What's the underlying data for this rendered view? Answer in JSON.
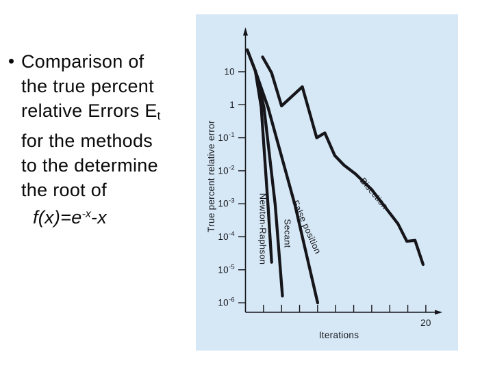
{
  "slide": {
    "bullet": {
      "lines": [
        "Comparison of",
        "the true percent",
        "relative Errors E",
        "for the methods",
        "to the determine",
        "the root of"
      ],
      "subscript": "t",
      "formula": {
        "prefix": "f(x)=e",
        "sup": "-x",
        "suffix": "-x"
      }
    }
  },
  "chart_data": {
    "type": "line",
    "title": "",
    "xlabel": "Iterations",
    "ylabel": "True percent relative error",
    "grid": false,
    "legend_position": "labels-on-curves",
    "x_axis": {
      "min": 0,
      "max": 22,
      "ticks": [
        2,
        4,
        6,
        8,
        10,
        12,
        14,
        16,
        18,
        20
      ],
      "labeled_tick": 20,
      "labeled_tick_text": "20"
    },
    "y_axis": {
      "scale": "log",
      "min": 1e-06,
      "max": 100,
      "tick_exponents": [
        1,
        0,
        -1,
        -2,
        -3,
        -4,
        -5,
        -6
      ],
      "tick_labels": [
        "10",
        "1",
        "10^-1",
        "10^-2",
        "10^-3",
        "10^-4",
        "10^-5",
        "10^-6"
      ]
    },
    "series": [
      {
        "name": "Newton-Raphson",
        "points": [
          [
            0.2,
            46
          ],
          [
            1.1,
            10.5
          ],
          [
            1.75,
            0.84
          ],
          [
            2.5,
            0.0009
          ],
          [
            2.9,
            1.7e-05
          ]
        ]
      },
      {
        "name": "Secant",
        "points": [
          [
            0.2,
            46
          ],
          [
            1.1,
            10.5
          ],
          [
            2.05,
            0.84
          ],
          [
            3.3,
            0.0009
          ],
          [
            4.1,
            1.6e-06
          ]
        ]
      },
      {
        "name": "False position",
        "points": [
          [
            0.2,
            46
          ],
          [
            1.1,
            10.5
          ],
          [
            2.5,
            0.84
          ],
          [
            5.5,
            0.0009
          ],
          [
            8.0,
            1e-06
          ]
        ]
      },
      {
        "name": "Bisection",
        "points": [
          [
            1.9,
            28
          ],
          [
            2.9,
            9.2
          ],
          [
            4.0,
            0.92
          ],
          [
            6.3,
            3.5
          ],
          [
            7.9,
            0.1
          ],
          [
            8.8,
            0.14
          ],
          [
            9.9,
            0.029
          ],
          [
            10.9,
            0.015
          ],
          [
            12.2,
            0.008
          ],
          [
            14.0,
            0.0027
          ],
          [
            15.6,
            0.00072
          ],
          [
            16.9,
            0.00025
          ],
          [
            17.9,
            7.3e-05
          ],
          [
            18.8,
            7.8e-05
          ],
          [
            19.7,
            1.45e-05
          ]
        ]
      }
    ],
    "colors": {
      "ink": "#15151a",
      "panel_bg": "#d6e8f6"
    }
  }
}
